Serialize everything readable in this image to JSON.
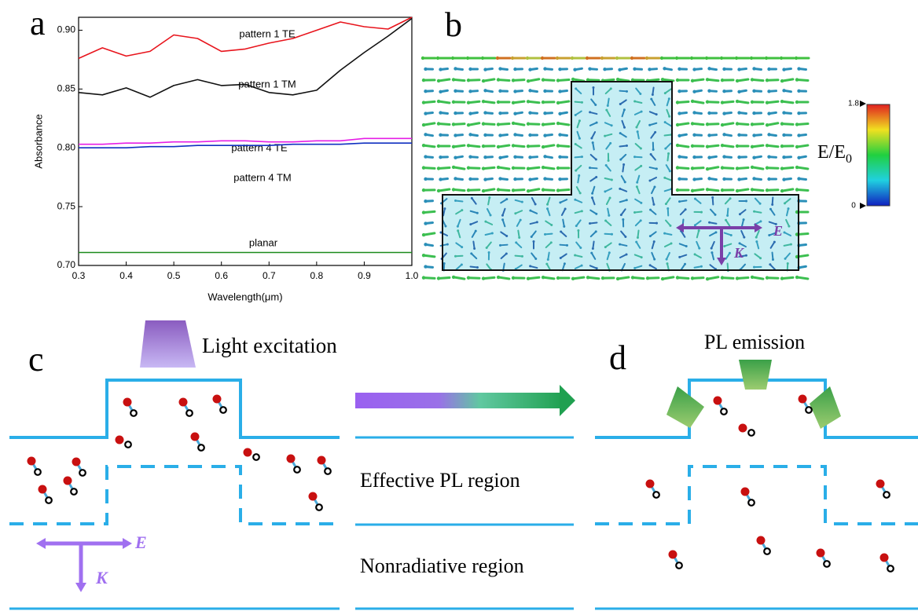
{
  "chart_data": {
    "type": "line",
    "x_label": "Wavelength(μm)",
    "y_label": "Absorbance",
    "x": [
      0.3,
      0.35,
      0.4,
      0.45,
      0.5,
      0.55,
      0.6,
      0.65,
      0.7,
      0.75,
      0.8,
      0.85,
      0.9,
      0.95,
      1.0
    ],
    "series": [
      {
        "name": "pattern 1 TE",
        "color": "#e8141c",
        "values": [
          0.876,
          0.885,
          0.878,
          0.882,
          0.896,
          0.893,
          0.882,
          0.884,
          0.889,
          0.893,
          0.9,
          0.907,
          0.903,
          0.901,
          0.911
        ]
      },
      {
        "name": "pattern 1 TM",
        "color": "#111111",
        "values": [
          0.847,
          0.845,
          0.851,
          0.843,
          0.853,
          0.858,
          0.853,
          0.854,
          0.847,
          0.845,
          0.849,
          0.866,
          0.881,
          0.895,
          0.91
        ]
      },
      {
        "name": "pattern 4 TE",
        "color": "#e61ee6",
        "values": [
          0.803,
          0.803,
          0.804,
          0.804,
          0.805,
          0.805,
          0.806,
          0.806,
          0.805,
          0.805,
          0.806,
          0.806,
          0.808,
          0.808,
          0.808
        ]
      },
      {
        "name": "pattern 4 TM",
        "color": "#1030c0",
        "values": [
          0.8,
          0.8,
          0.8,
          0.801,
          0.801,
          0.802,
          0.802,
          0.802,
          0.802,
          0.803,
          0.803,
          0.803,
          0.804,
          0.804,
          0.804
        ]
      },
      {
        "name": "planar",
        "color": "#1b8a1b",
        "values": [
          0.711,
          0.711,
          0.711,
          0.711,
          0.711,
          0.711,
          0.711,
          0.711,
          0.711,
          0.711,
          0.711,
          0.711,
          0.711,
          0.711,
          0.711
        ]
      }
    ],
    "xlim": [
      0.3,
      1.0
    ],
    "ylim": [
      0.7,
      0.911
    ],
    "xticks": [
      0.3,
      0.4,
      0.5,
      0.6,
      0.7,
      0.8,
      0.9,
      {
        "value": 1.0,
        "label": "1.0"
      }
    ],
    "yticks": [
      {
        "value": 0.7,
        "label": "0.70"
      },
      0.75,
      {
        "value": 0.8,
        "label": "0.80"
      },
      0.85,
      {
        "value": 0.9,
        "label": "0.90"
      }
    ]
  },
  "figure": {
    "panel_labels": [
      "a",
      "b",
      "c",
      "d"
    ],
    "panel_b": {
      "colorbar_max": "1.8",
      "colorbar_min": "0",
      "colorbar_label": "E/E",
      "colorbar_label_sub": "0",
      "e_label": "E",
      "k_label": "K"
    },
    "panel_c": {
      "excitation": "Light excitation",
      "e_label": "E",
      "k_label": "K"
    },
    "middle": {
      "effective_region": "Effective PL region",
      "nonradiative_region": "Nonradiative region"
    },
    "panel_d": {
      "emission": "PL emission"
    }
  }
}
